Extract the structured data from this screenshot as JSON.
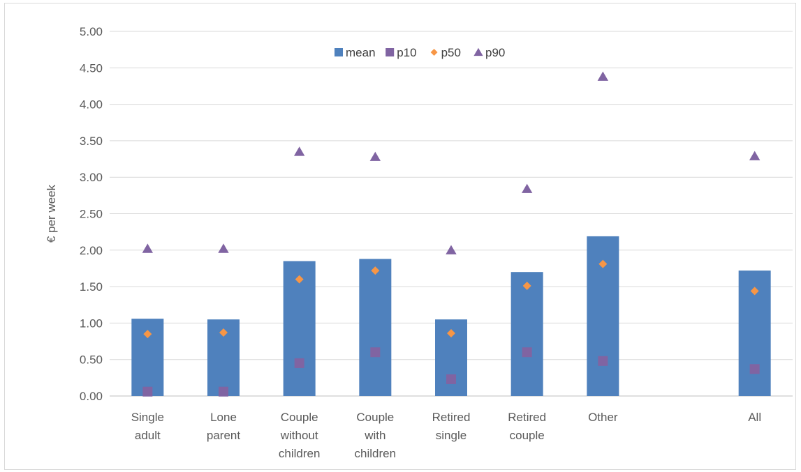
{
  "chart_data": {
    "type": "bar",
    "title": "",
    "xlabel": "",
    "ylabel": "€ per week",
    "ylim": [
      0,
      5
    ],
    "yticks": [
      "0.00",
      "0.50",
      "1.00",
      "1.50",
      "2.00",
      "2.50",
      "3.00",
      "3.50",
      "4.00",
      "4.50",
      "5.00"
    ],
    "grid": true,
    "legend_position": "top-center",
    "categories": [
      [
        "Single",
        "adult"
      ],
      [
        "Lone",
        "parent"
      ],
      [
        "Couple",
        "without",
        "children"
      ],
      [
        "Couple",
        "with",
        "children"
      ],
      [
        "Retired",
        "single"
      ],
      [
        "Retired",
        "couple"
      ],
      [
        "Other"
      ],
      [
        ""
      ],
      [
        "All"
      ]
    ],
    "series": [
      {
        "name": "mean",
        "kind": "bar",
        "marker": "rect",
        "color": "#4f81bd",
        "values": [
          1.06,
          1.05,
          1.85,
          1.88,
          1.05,
          1.7,
          2.19,
          null,
          1.72
        ]
      },
      {
        "name": "p10",
        "kind": "marker",
        "marker": "square",
        "color": "#8064a2",
        "values": [
          0.06,
          0.06,
          0.45,
          0.6,
          0.23,
          0.6,
          0.48,
          null,
          0.37
        ]
      },
      {
        "name": "p50",
        "kind": "marker",
        "marker": "diamond",
        "color": "#f79646",
        "values": [
          0.85,
          0.87,
          1.6,
          1.72,
          0.86,
          1.51,
          1.81,
          null,
          1.44
        ]
      },
      {
        "name": "p90",
        "kind": "marker",
        "marker": "triangle",
        "color": "#8064a2",
        "values": [
          2.02,
          2.02,
          3.35,
          3.28,
          2.0,
          2.84,
          4.38,
          null,
          3.29
        ]
      }
    ]
  }
}
